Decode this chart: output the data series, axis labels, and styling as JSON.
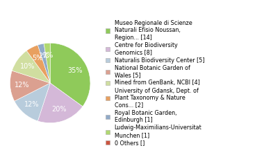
{
  "labels": [
    "Museo Regionale di Scienze\nNaturali Efisio Noussan,\nRegion... [14]",
    "Centre for Biodiversity\nGenomics [8]",
    "Naturalis Biodiversity Center [5]",
    "National Botanic Garden of\nWales [5]",
    "Mined from GenBank, NCBI [4]",
    "University of Gdansk, Dept. of\nPlant Taxonomy & Nature\nCons... [2]",
    "Royal Botanic Garden,\nEdinburgh [1]",
    "Ludwig-Maximilians-Universitat\nMunchen [1]",
    "0 Others []"
  ],
  "values": [
    14,
    8,
    5,
    5,
    4,
    2,
    1,
    1,
    0
  ],
  "pie_colors": [
    "#8fca5a",
    "#d4b8d8",
    "#b8ccdc",
    "#dba090",
    "#d0dea0",
    "#e8a060",
    "#90aac8",
    "#b0d870",
    "#cc5540"
  ],
  "legend_colors": [
    "#8fca5a",
    "#d4b8d8",
    "#b8ccdc",
    "#dba090",
    "#d0dea0",
    "#e8a060",
    "#90aac8",
    "#b0d870",
    "#cc5540"
  ],
  "background_color": "#ffffff",
  "text_color": "#ffffff",
  "legend_fontsize": 5.8,
  "pct_fontsize": 7.0
}
